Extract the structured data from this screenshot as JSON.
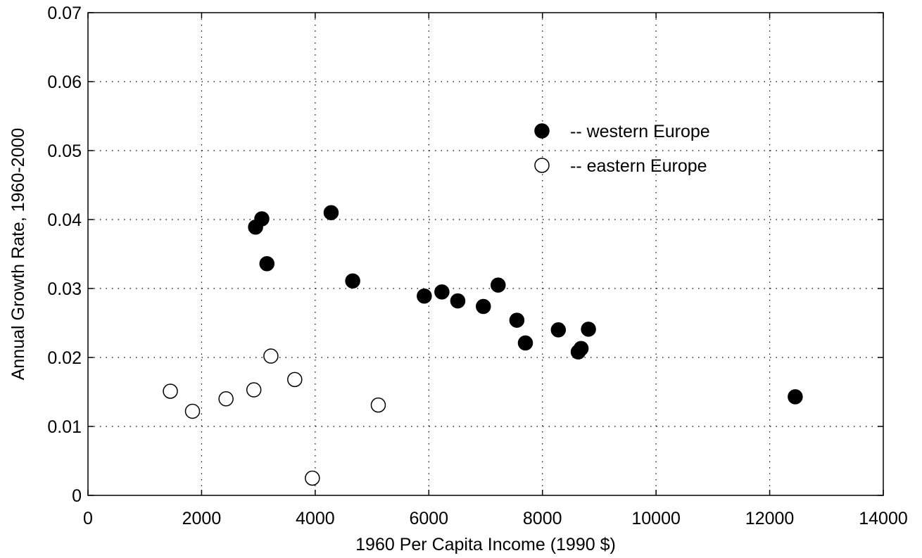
{
  "chart_data": {
    "type": "scatter",
    "title": "",
    "xlabel": "1960 Per Capita Income (1990 $)",
    "ylabel": "Annual Growth Rate, 1960-2000",
    "xlim": [
      0,
      14000
    ],
    "ylim": [
      0,
      0.07
    ],
    "x_ticks": [
      0,
      2000,
      4000,
      6000,
      8000,
      10000,
      12000,
      14000
    ],
    "x_tick_labels": [
      "0",
      "2000",
      "4000",
      "6000",
      "8000",
      "10000",
      "12000",
      "14000"
    ],
    "y_ticks": [
      0,
      0.01,
      0.02,
      0.03,
      0.04,
      0.05,
      0.06,
      0.07
    ],
    "y_tick_labels": [
      "0",
      "0.01",
      "0.02",
      "0.03",
      "0.04",
      "0.05",
      "0.06",
      "0.07"
    ],
    "grid": true,
    "legend_position": "top-right",
    "series": [
      {
        "name": "-- western Europe",
        "marker": "filled-circle",
        "color": "#000000",
        "points": [
          [
            2950,
            0.0389
          ],
          [
            3060,
            0.0401
          ],
          [
            3150,
            0.0336
          ],
          [
            4280,
            0.041
          ],
          [
            4660,
            0.0311
          ],
          [
            5920,
            0.0289
          ],
          [
            6230,
            0.0295
          ],
          [
            6510,
            0.0282
          ],
          [
            6960,
            0.0274
          ],
          [
            7220,
            0.0305
          ],
          [
            7550,
            0.0254
          ],
          [
            7700,
            0.0221
          ],
          [
            8280,
            0.024
          ],
          [
            8630,
            0.0208
          ],
          [
            8680,
            0.0213
          ],
          [
            8810,
            0.0241
          ],
          [
            12450,
            0.0143
          ]
        ]
      },
      {
        "name": "-- eastern Europe",
        "marker": "open-circle",
        "color": "#000000",
        "points": [
          [
            1450,
            0.0151
          ],
          [
            1840,
            0.0122
          ],
          [
            2430,
            0.014
          ],
          [
            2920,
            0.0153
          ],
          [
            3220,
            0.0202
          ],
          [
            3640,
            0.0168
          ],
          [
            3950,
            0.0025
          ],
          [
            5110,
            0.0131
          ]
        ]
      }
    ]
  }
}
